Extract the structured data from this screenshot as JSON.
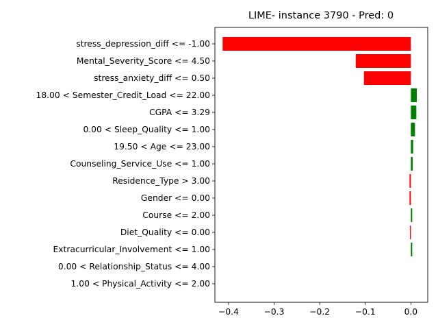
{
  "chart_data": {
    "type": "bar",
    "orientation": "horizontal",
    "title": "LIME- instance 3790 - Pred: 0",
    "xlabel": "",
    "ylabel": "",
    "xlim": [
      -0.43,
      0.037
    ],
    "grid": false,
    "categories": [
      "stress_depression_diff <= -1.00",
      "Mental_Severity_Score <= 4.50",
      "stress_anxiety_diff <= 0.50",
      "18.00 < Semester_Credit_Load <= 22.00",
      "CGPA <= 3.29",
      "0.00 < Sleep_Quality <= 1.00",
      "19.50 < Age <= 23.00",
      "Counseling_Service_Use <= 1.00",
      "Residence_Type > 3.00",
      "Gender <= 0.00",
      "Course <= 2.00",
      "Diet_Quality <= 0.00",
      "Extracurricular_Involvement <= 1.00",
      "0.00 < Relationship_Status <= 4.00",
      "1.00 < Physical_Activity <= 2.00"
    ],
    "values": [
      -0.413,
      -0.121,
      -0.103,
      0.013,
      0.012,
      0.009,
      0.005,
      0.004,
      -0.003,
      -0.003,
      0.003,
      -0.002,
      0.003,
      0.0,
      0.0
    ],
    "x_ticks": [
      -0.4,
      -0.3,
      -0.2,
      -0.1,
      0.0
    ],
    "x_tick_labels": [
      "−0.4",
      "−0.3",
      "−0.2",
      "−0.1",
      "0.0"
    ],
    "colors": {
      "positive": "#008000",
      "negative": "#ff0000"
    }
  }
}
